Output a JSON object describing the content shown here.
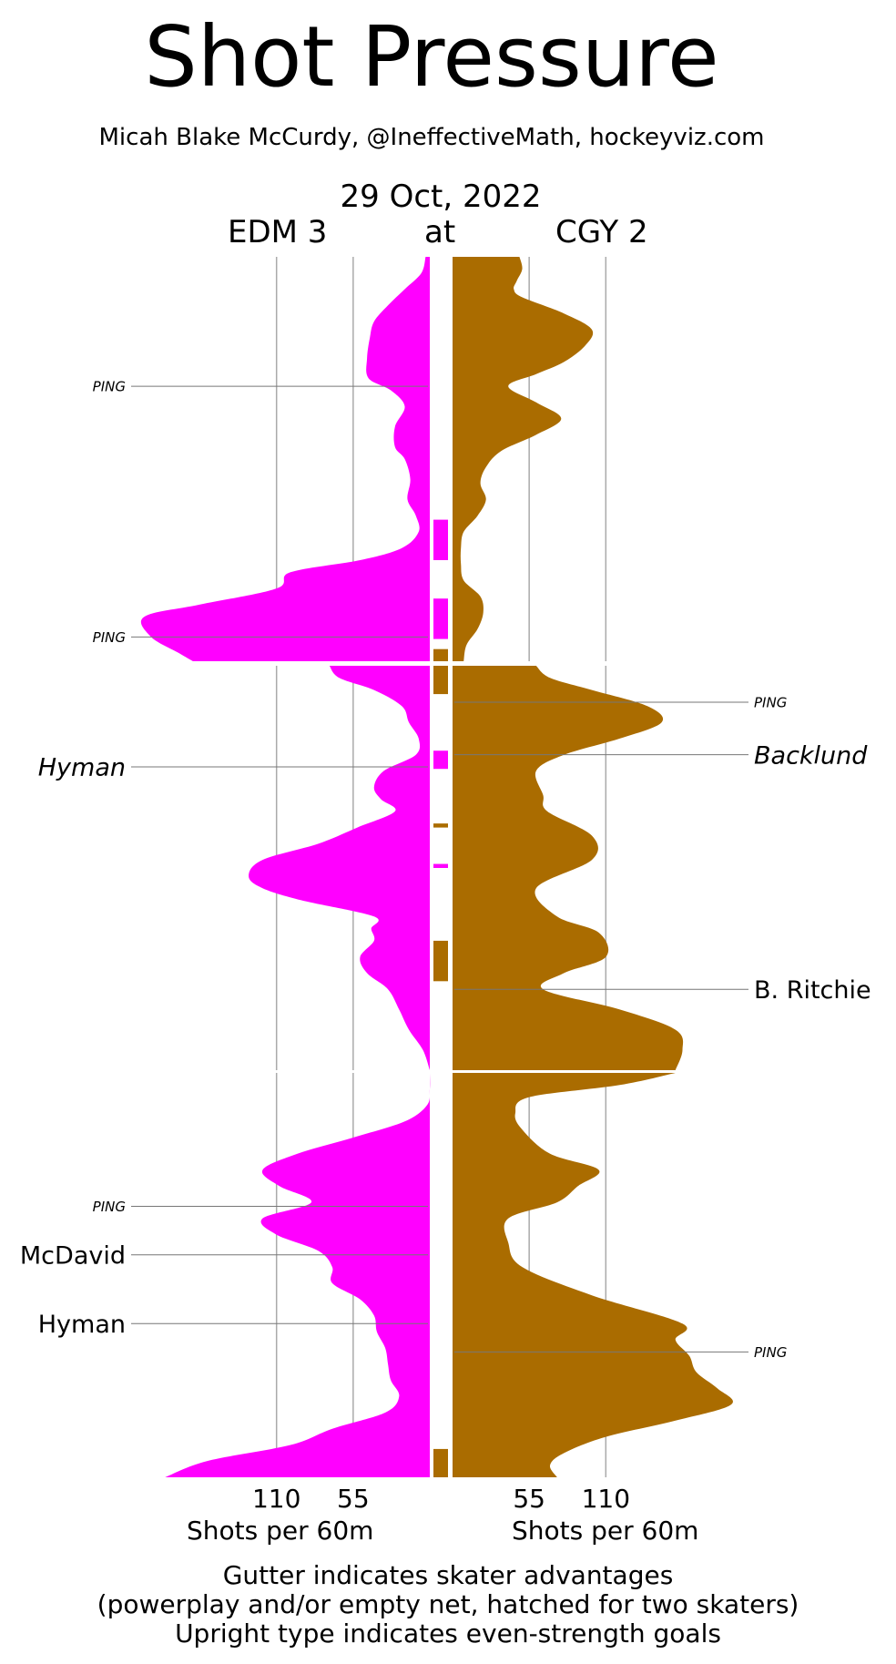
{
  "chart_data": {
    "type": "area",
    "title": "Shot Pressure",
    "subtitle": "Micah Blake McCurdy, @IneffectiveMath, hockeyviz.com",
    "date": "29 Oct, 2022",
    "at_label": "at",
    "away_team": {
      "label": "EDM 3",
      "color": "#FF00FF"
    },
    "home_team": {
      "label": "CGY 2",
      "color": "#AA6C00"
    },
    "x_axis": {
      "away_ticks": [
        "110",
        "55"
      ],
      "home_ticks": [
        "55",
        "110"
      ],
      "away_title": "Shots per 60m",
      "home_title": "Shots per 60m",
      "range": [
        0,
        160
      ]
    },
    "periods": [
      {
        "away_profile": [
          [
            0,
            3
          ],
          [
            0.04,
            6
          ],
          [
            0.08,
            18
          ],
          [
            0.12,
            30
          ],
          [
            0.16,
            40
          ],
          [
            0.2,
            43
          ],
          [
            0.25,
            45
          ],
          [
            0.3,
            44
          ],
          [
            0.33,
            28
          ],
          [
            0.37,
            18
          ],
          [
            0.42,
            25
          ],
          [
            0.47,
            25
          ],
          [
            0.5,
            18
          ],
          [
            0.55,
            14
          ],
          [
            0.6,
            16
          ],
          [
            0.64,
            10
          ],
          [
            0.68,
            8
          ],
          [
            0.72,
            20
          ],
          [
            0.75,
            50
          ],
          [
            0.78,
            100
          ],
          [
            0.82,
            110
          ],
          [
            0.86,
            165
          ],
          [
            0.89,
            205
          ],
          [
            0.94,
            200
          ],
          [
            0.98,
            180
          ],
          [
            1,
            170
          ]
        ],
        "home_profile": [
          [
            0,
            48
          ],
          [
            0.03,
            50
          ],
          [
            0.06,
            46
          ],
          [
            0.08,
            44
          ],
          [
            0.1,
            50
          ],
          [
            0.14,
            80
          ],
          [
            0.18,
            100
          ],
          [
            0.22,
            95
          ],
          [
            0.26,
            80
          ],
          [
            0.29,
            60
          ],
          [
            0.32,
            40
          ],
          [
            0.36,
            60
          ],
          [
            0.4,
            78
          ],
          [
            0.44,
            60
          ],
          [
            0.48,
            35
          ],
          [
            0.52,
            24
          ],
          [
            0.56,
            20
          ],
          [
            0.6,
            24
          ],
          [
            0.64,
            18
          ],
          [
            0.68,
            8
          ],
          [
            0.72,
            6
          ],
          [
            0.76,
            6
          ],
          [
            0.8,
            8
          ],
          [
            0.84,
            20
          ],
          [
            0.88,
            22
          ],
          [
            0.92,
            18
          ],
          [
            0.96,
            10
          ],
          [
            1,
            8
          ]
        ],
        "gutter": [
          {
            "team": "away",
            "from": 0.65,
            "to": 0.75
          },
          {
            "team": "away",
            "from": 0.845,
            "to": 0.945
          },
          {
            "team": "home",
            "from": 0.97,
            "to": 1.0
          }
        ],
        "events": [
          {
            "side": "away",
            "label": "PING",
            "at": 0.32,
            "style": "ping"
          },
          {
            "side": "away",
            "label": "PING",
            "at": 0.94,
            "style": "ping"
          }
        ]
      },
      {
        "away_profile": [
          [
            0,
            72
          ],
          [
            0.03,
            65
          ],
          [
            0.06,
            40
          ],
          [
            0.1,
            20
          ],
          [
            0.14,
            15
          ],
          [
            0.18,
            8
          ],
          [
            0.22,
            10
          ],
          [
            0.26,
            33
          ],
          [
            0.3,
            40
          ],
          [
            0.33,
            35
          ],
          [
            0.36,
            25
          ],
          [
            0.4,
            52
          ],
          [
            0.44,
            80
          ],
          [
            0.48,
            120
          ],
          [
            0.52,
            130
          ],
          [
            0.55,
            120
          ],
          [
            0.58,
            92
          ],
          [
            0.62,
            40
          ],
          [
            0.65,
            42
          ],
          [
            0.68,
            40
          ],
          [
            0.72,
            50
          ],
          [
            0.76,
            45
          ],
          [
            0.8,
            30
          ],
          [
            0.85,
            22
          ],
          [
            0.9,
            15
          ],
          [
            0.95,
            5
          ],
          [
            1,
            0
          ]
        ],
        "home_profile": [
          [
            0,
            60
          ],
          [
            0.03,
            70
          ],
          [
            0.06,
            100
          ],
          [
            0.1,
            140
          ],
          [
            0.14,
            150
          ],
          [
            0.18,
            120
          ],
          [
            0.22,
            80
          ],
          [
            0.26,
            60
          ],
          [
            0.32,
            65
          ],
          [
            0.36,
            68
          ],
          [
            0.42,
            100
          ],
          [
            0.48,
            100
          ],
          [
            0.55,
            60
          ],
          [
            0.62,
            75
          ],
          [
            0.66,
            105
          ],
          [
            0.72,
            110
          ],
          [
            0.76,
            80
          ],
          [
            0.8,
            65
          ],
          [
            0.85,
            120
          ],
          [
            0.9,
            160
          ],
          [
            0.95,
            165
          ],
          [
            1,
            160
          ]
        ],
        "gutter": [
          {
            "team": "home",
            "from": 0.0,
            "to": 0.07
          },
          {
            "team": "away",
            "from": 0.21,
            "to": 0.255
          },
          {
            "team": "home",
            "from": 0.39,
            "to": 0.4
          },
          {
            "team": "away",
            "from": 0.49,
            "to": 0.5
          },
          {
            "team": "home",
            "from": 0.68,
            "to": 0.78
          }
        ],
        "events": [
          {
            "side": "home",
            "label": "PING",
            "at": 0.09,
            "style": "ping"
          },
          {
            "side": "home",
            "label": "Backlund",
            "at": 0.22,
            "style": "pp-goal"
          },
          {
            "side": "away",
            "label": "Hyman",
            "at": 0.25,
            "style": "pp-goal"
          },
          {
            "side": "home",
            "label": "B. Ritchie",
            "at": 0.8,
            "style": "goal"
          }
        ]
      },
      {
        "away_profile": [
          [
            0,
            0
          ],
          [
            0.04,
            0
          ],
          [
            0.08,
            2
          ],
          [
            0.12,
            18
          ],
          [
            0.16,
            55
          ],
          [
            0.2,
            95
          ],
          [
            0.24,
            120
          ],
          [
            0.28,
            108
          ],
          [
            0.32,
            85
          ],
          [
            0.36,
            120
          ],
          [
            0.4,
            110
          ],
          [
            0.44,
            80
          ],
          [
            0.48,
            70
          ],
          [
            0.52,
            70
          ],
          [
            0.56,
            50
          ],
          [
            0.6,
            40
          ],
          [
            0.64,
            38
          ],
          [
            0.68,
            32
          ],
          [
            0.72,
            30
          ],
          [
            0.76,
            28
          ],
          [
            0.8,
            22
          ],
          [
            0.84,
            32
          ],
          [
            0.88,
            70
          ],
          [
            0.92,
            100
          ],
          [
            0.96,
            160
          ],
          [
            1,
            190
          ]
        ],
        "home_profile": [
          [
            0,
            160
          ],
          [
            0.03,
            120
          ],
          [
            0.06,
            55
          ],
          [
            0.1,
            45
          ],
          [
            0.14,
            50
          ],
          [
            0.2,
            70
          ],
          [
            0.24,
            105
          ],
          [
            0.28,
            90
          ],
          [
            0.32,
            75
          ],
          [
            0.36,
            40
          ],
          [
            0.42,
            40
          ],
          [
            0.48,
            50
          ],
          [
            0.55,
            100
          ],
          [
            0.62,
            165
          ],
          [
            0.66,
            160
          ],
          [
            0.7,
            170
          ],
          [
            0.74,
            175
          ],
          [
            0.78,
            190
          ],
          [
            0.82,
            200
          ],
          [
            0.86,
            160
          ],
          [
            0.9,
            110
          ],
          [
            0.94,
            80
          ],
          [
            0.97,
            70
          ],
          [
            1,
            75
          ]
        ],
        "gutter": [
          {
            "team": "home",
            "from": 0.93,
            "to": 1.0
          }
        ],
        "events": [
          {
            "side": "away",
            "label": "PING",
            "at": 0.33,
            "style": "ping"
          },
          {
            "side": "away",
            "label": "McDavid",
            "at": 0.45,
            "style": "goal"
          },
          {
            "side": "away",
            "label": "Hyman",
            "at": 0.62,
            "style": "goal"
          },
          {
            "side": "home",
            "label": "PING",
            "at": 0.69,
            "style": "ping"
          }
        ]
      }
    ],
    "footnotes": [
      "Gutter indicates skater advantages",
      "(powerplay and/or empty net, hatched for two skaters)",
      "Upright type indicates even-strength goals"
    ]
  }
}
